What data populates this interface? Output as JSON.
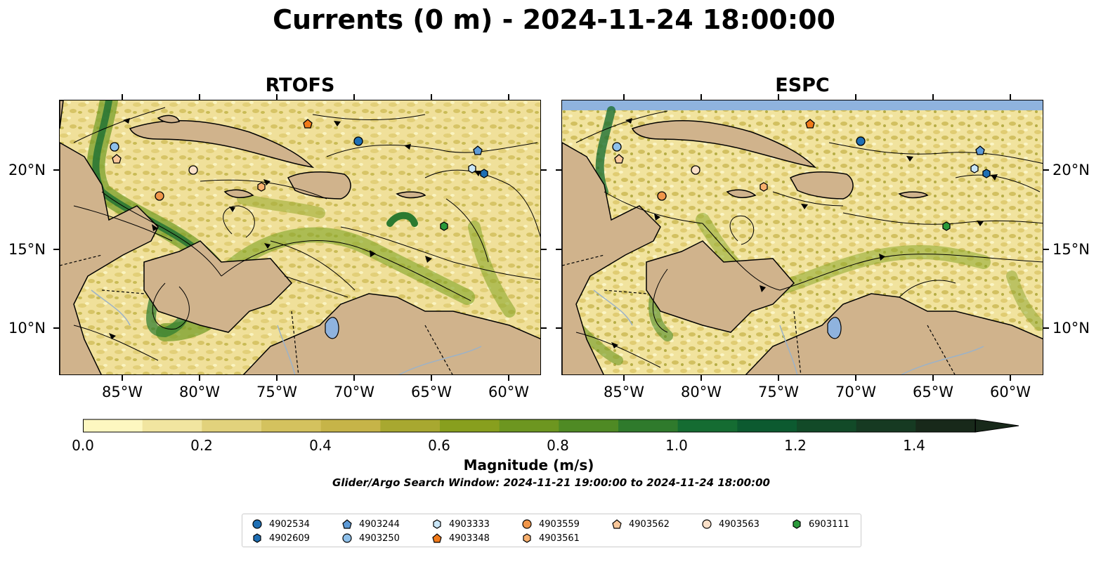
{
  "title": "Currents (0 m) - 2024-11-24 18:00:00",
  "panels": [
    {
      "title": "RTOFS"
    },
    {
      "title": "ESPC"
    }
  ],
  "lon_ticks": [
    "85°W",
    "80°W",
    "75°W",
    "70°W",
    "65°W",
    "60°W"
  ],
  "lat_ticks": [
    "20°N",
    "15°N",
    "10°N"
  ],
  "colorbar": {
    "label": "Magnitude (m/s)",
    "ticks": [
      "0.0",
      "0.2",
      "0.4",
      "0.6",
      "0.8",
      "1.0",
      "1.2",
      "1.4"
    ],
    "range": [
      0,
      1.5
    ],
    "extend": "max",
    "colors": [
      "#fdf7c0",
      "#f1e5a0",
      "#e2d27c",
      "#d4c25e",
      "#c6b448",
      "#a8a830",
      "#889f1e",
      "#6d9620",
      "#4f8a24",
      "#2f7a2c",
      "#156c32",
      "#0c5a30",
      "#124a28",
      "#163a22",
      "#18291a"
    ]
  },
  "search_window": "Glider/Argo Search Window: 2024-11-21 19:00:00 to 2024-11-24 18:00:00",
  "legend": [
    {
      "id": "4902534",
      "marker": "circle",
      "color": "#1f6fb4"
    },
    {
      "id": "4902609",
      "marker": "hexagon",
      "color": "#1f6fb4"
    },
    {
      "id": "4903244",
      "marker": "pentagon",
      "color": "#5d9ad6"
    },
    {
      "id": "4903250",
      "marker": "circle",
      "color": "#8ec0ea"
    },
    {
      "id": "4903333",
      "marker": "hexagon",
      "color": "#c9e6f8"
    },
    {
      "id": "4903348",
      "marker": "pentagon",
      "color": "#f07a1a"
    },
    {
      "id": "4903559",
      "marker": "circle",
      "color": "#f0964a"
    },
    {
      "id": "4903561",
      "marker": "hexagon",
      "color": "#f8b06e"
    },
    {
      "id": "4903562",
      "marker": "pentagon",
      "color": "#f9c79a"
    },
    {
      "id": "4903563",
      "marker": "circle",
      "color": "#fbe0c8"
    },
    {
      "id": "6903111",
      "marker": "hexagon",
      "color": "#2b9a3b"
    }
  ],
  "colors": {
    "land": "#d0b38c",
    "lakes": "#8fb3de",
    "ocean_low": "#f3e49b"
  }
}
